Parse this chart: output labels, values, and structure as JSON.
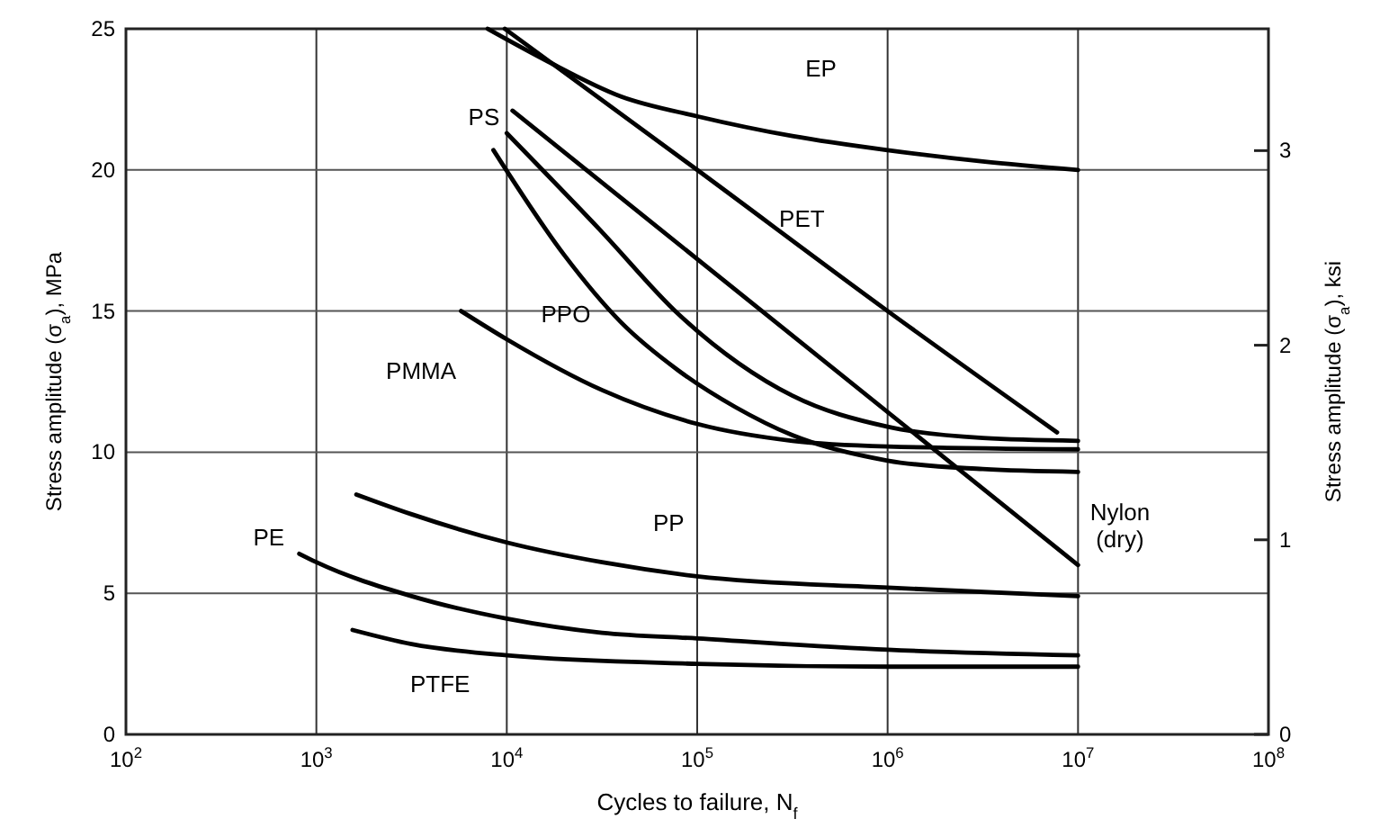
{
  "chart_data": {
    "type": "line",
    "xlabel": "Cycles to failure, N$_{f}$",
    "ylabel": "Stress amplitude (σ$_{a}$), MPa",
    "y2label": "Stress amplitude (σ$_{a}$), ksi",
    "log": "x",
    "xlim": [
      100,
      100000000
    ],
    "xticks": [
      {
        "value": 100,
        "label": "10$^{2}$"
      },
      {
        "value": 1000,
        "label": "10$^{3}$"
      },
      {
        "value": 10000,
        "label": "10$^{4}$"
      },
      {
        "value": 100000,
        "label": "10$^{5}$"
      },
      {
        "value": 1000000,
        "label": "10$^{6}$"
      },
      {
        "value": 10000000,
        "label": "10$^{7}$"
      },
      {
        "value": 100000000,
        "label": "10$^{8}$"
      }
    ],
    "ylim": [
      0,
      25
    ],
    "yticks": [
      0,
      5,
      10,
      15,
      20,
      25
    ],
    "y2lim": [
      0,
      3.626
    ],
    "y2ticks": [
      0,
      1,
      2,
      3
    ],
    "grid": true,
    "legend": false,
    "marker": "none",
    "line_style": "solid",
    "series": [
      {
        "name": "EP",
        "color": "#000000",
        "x": [
          7943,
          15849,
          39811,
          100000,
          316228,
          1000000,
          3162278,
          10000000
        ],
        "values": [
          25,
          23.9,
          22.6,
          21.9,
          21.2,
          20.7,
          20.3,
          20.0
        ]
      },
      {
        "name": "PET",
        "color": "#000000",
        "x": [
          9772,
          100000,
          1000000,
          7762471
        ],
        "values": [
          25,
          20,
          15,
          10.7
        ]
      },
      {
        "name": "PS",
        "color": "#000000",
        "x": [
          10000,
          31623,
          79433,
          316228,
          1000000,
          3162278,
          10000000
        ],
        "values": [
          21.3,
          17.8,
          14.9,
          12.0,
          10.9,
          10.5,
          10.4
        ]
      },
      {
        "name": "Nylon (dry)",
        "color": "#000000",
        "x": [
          10715,
          10000000
        ],
        "values": [
          22.1,
          6.0
        ]
      },
      {
        "name": "PPO",
        "color": "#000000",
        "x": [
          8511,
          19953,
          39811,
          79433,
          158489,
          316228,
          1000000,
          3162278,
          10000000
        ],
        "values": [
          20.7,
          17.0,
          14.6,
          12.9,
          11.6,
          10.6,
          9.7,
          9.4,
          9.3
        ]
      },
      {
        "name": "PMMA",
        "color": "#000000",
        "x": [
          5754,
          10000,
          31623,
          100000,
          316228,
          1000000,
          10000000
        ],
        "values": [
          15,
          14,
          12.2,
          11,
          10.4,
          10.2,
          10.1
        ]
      },
      {
        "name": "PP",
        "color": "#000000",
        "x": [
          1622,
          3162,
          10000,
          31623,
          100000,
          1000000,
          10000000
        ],
        "values": [
          8.5,
          7.8,
          6.8,
          6.1,
          5.6,
          5.2,
          4.9
        ]
      },
      {
        "name": "PE",
        "color": "#000000",
        "x": [
          813,
          1000,
          3162,
          10000,
          31623,
          100000,
          1000000,
          10000000
        ],
        "values": [
          6.4,
          6.1,
          4.9,
          4.1,
          3.6,
          3.4,
          3.0,
          2.8
        ]
      },
      {
        "name": "PTFE",
        "color": "#000000",
        "x": [
          1549,
          3162,
          10000,
          100000,
          1000000,
          10000000
        ],
        "values": [
          3.7,
          3.2,
          2.8,
          2.5,
          2.4,
          2.4
        ]
      }
    ]
  }
}
